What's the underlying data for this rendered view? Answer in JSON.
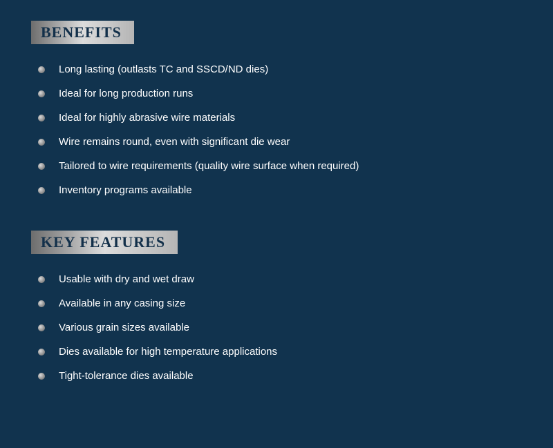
{
  "sections": [
    {
      "heading": "BENEFITS",
      "items": [
        "Long lasting (outlasts TC and SSCD/ND dies)",
        "Ideal for long production runs",
        "Ideal for highly abrasive wire materials",
        "Wire remains round, even with significant die wear",
        "Tailored to wire requirements (quality wire surface when required)",
        "Inventory programs available"
      ]
    },
    {
      "heading": "KEY FEATURES",
      "items": [
        "Usable with dry and wet draw",
        "Available in any casing size",
        "Various grain sizes available",
        "Dies available for high temperature applications",
        "Tight-tolerance dies available"
      ]
    }
  ],
  "style": {
    "background_color": "#11334e",
    "text_color": "#ffffff",
    "badge_gradient": [
      "#6d6d6d",
      "#dcdcdc",
      "#b5b5b5"
    ],
    "heading_color": "#13304a",
    "heading_fontsize": 22,
    "item_fontsize": 15,
    "bullet_gradient": [
      "#d9d9d9",
      "#8e8e8e",
      "#6a6a6a"
    ]
  }
}
